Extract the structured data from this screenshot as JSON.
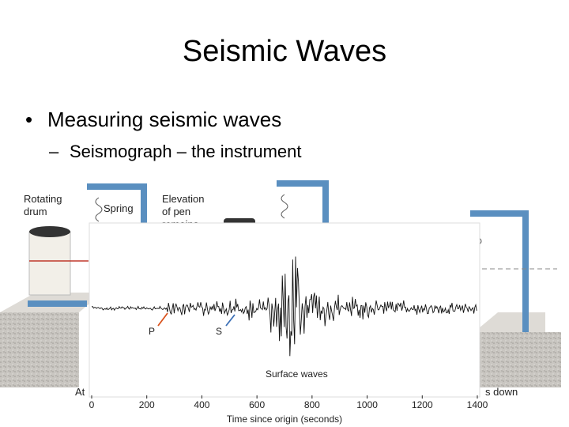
{
  "slide": {
    "title": "Seismic Waves",
    "bullet": "Measuring seismic waves",
    "sub_bullet": "Seismograph – the instrument"
  },
  "figure": {
    "labels": [
      "Rotating",
      "drum",
      "Spring",
      "Elevation",
      "of pen",
      "remains",
      "At",
      "s down"
    ]
  },
  "seismogram": {
    "xlabel": "Time since origin (seconds)",
    "xlim": [
      0,
      1400
    ],
    "xticks": [
      0,
      200,
      400,
      600,
      800,
      1000,
      1200,
      1400
    ],
    "annotations": {
      "p": "P",
      "s": "S",
      "surface": "Surface waves"
    }
  }
}
